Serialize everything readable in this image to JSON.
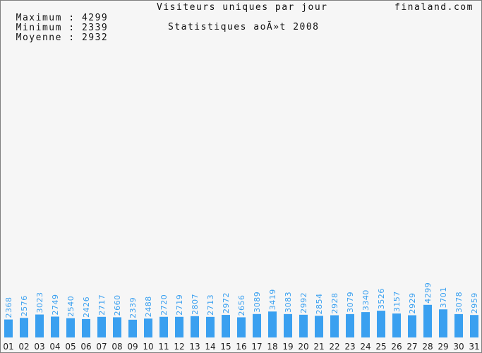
{
  "header": {
    "stats": [
      {
        "label": "Maximum",
        "value": "4299"
      },
      {
        "label": "Minimum",
        "value": "2339"
      },
      {
        "label": "Moyenne",
        "value": "2932"
      }
    ],
    "title": "Visiteurs uniques par jour",
    "subtitle": "Statistiques aoÃ»t 2008",
    "site": "finaland.com"
  },
  "colors": {
    "bar": "#3aa0f0",
    "background": "#f6f6f6",
    "frame": "#7f7f7f"
  },
  "chart_data": {
    "type": "bar",
    "title": "Visiteurs uniques par jour",
    "subtitle": "Statistiques aoÃ»t 2008",
    "categories": [
      "01",
      "02",
      "03",
      "04",
      "05",
      "06",
      "07",
      "08",
      "09",
      "10",
      "11",
      "12",
      "13",
      "14",
      "15",
      "16",
      "17",
      "18",
      "19",
      "20",
      "21",
      "22",
      "23",
      "24",
      "25",
      "26",
      "27",
      "28",
      "29",
      "30",
      "31"
    ],
    "values": [
      2368,
      2576,
      3023,
      2749,
      2540,
      2426,
      2717,
      2660,
      2339,
      2488,
      2720,
      2719,
      2807,
      2713,
      2972,
      2656,
      3089,
      3419,
      3083,
      2992,
      2854,
      2928,
      3079,
      3340,
      3526,
      3157,
      2929,
      4299,
      3701,
      3078,
      2959
    ],
    "ylim": [
      0,
      40000
    ],
    "grid": false,
    "data_labels": true
  }
}
